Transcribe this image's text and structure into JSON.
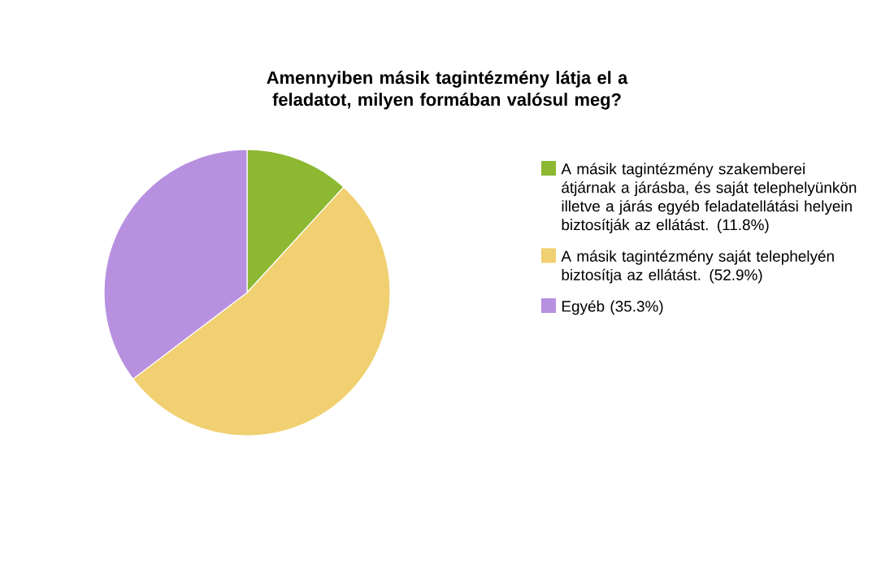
{
  "chart_data": {
    "type": "pie",
    "title": "Amennyiben másik tagintézmény látja el a feladatot, milyen formában valósul meg?",
    "categories": [
      "A másik tagintézmény szakemberei átjárnak a járásba, és saját telephelyünkön illetve a járás egyéb feladatellátási helyein biztosítják az ellátást. (11.8%)",
      "A másik tagintézmény saját telephelyén biztosítja az ellátást. (52.9%)",
      "Egyéb (35.3%)"
    ],
    "values": [
      11.8,
      52.9,
      35.3
    ],
    "colors": [
      "#8cb832",
      "#f0d070",
      "#b890e0"
    ],
    "legend": "right"
  }
}
